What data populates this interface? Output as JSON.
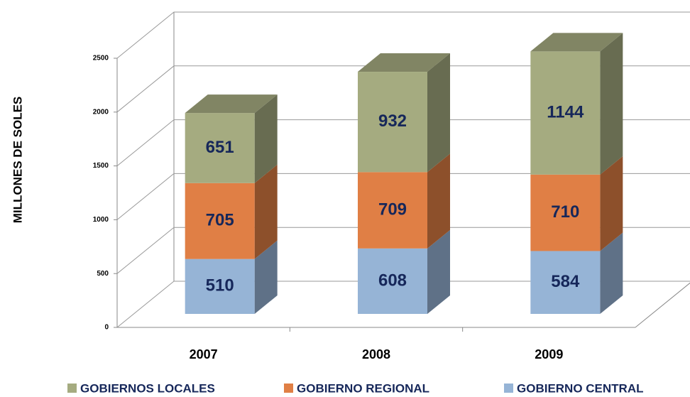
{
  "chart_data": {
    "type": "bar3d_stacked",
    "y_axis_label": "MILLONES DE SOLES",
    "categories": [
      "2007",
      "2008",
      "2009"
    ],
    "series": [
      {
        "name": "GOBIERNOS LOCALES",
        "color": "#a5ab80",
        "values": [
          651,
          932,
          1144
        ]
      },
      {
        "name": "GOBIERNO REGIONAL",
        "color": "#e07f45",
        "values": [
          705,
          709,
          710
        ]
      },
      {
        "name": "GOBIERNO CENTRAL",
        "color": "#96b4d6",
        "values": [
          510,
          608,
          584
        ]
      }
    ],
    "ylim": [
      0,
      2500
    ],
    "yticks": [
      0,
      500,
      1000,
      1500,
      2000,
      2500
    ],
    "grid": true,
    "legend": "bottom"
  }
}
